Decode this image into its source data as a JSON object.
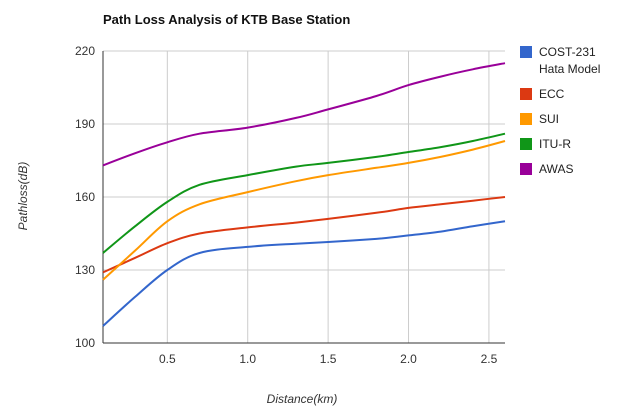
{
  "chart_data": {
    "type": "line",
    "title": "Path Loss Analysis of KTB Base Station",
    "xlabel": "Distance(km)",
    "ylabel": "Pathloss(dB)",
    "xlim": [
      0.1,
      2.6
    ],
    "ylim": [
      100,
      220
    ],
    "xticks": [
      0.5,
      1.0,
      1.5,
      2.0,
      2.5
    ],
    "xtick_labels": [
      "0.5",
      "1.0",
      "1.5",
      "2.0",
      "2.5"
    ],
    "yticks": [
      100,
      130,
      160,
      190,
      220
    ],
    "ytick_labels": [
      "100",
      "130",
      "160",
      "190",
      "220"
    ],
    "grid": true,
    "legend_position": "right",
    "x": [
      0.1,
      0.3,
      0.5,
      0.7,
      1.0,
      1.3,
      1.5,
      1.8,
      2.0,
      2.2,
      2.4,
      2.6
    ],
    "series": [
      {
        "name": "COST-231 Hata Model",
        "legend_lines": [
          "COST-231",
          "Hata Model"
        ],
        "color": "#3366cc",
        "values": [
          107,
          119,
          130,
          137,
          139.5,
          140.8,
          141.5,
          142.8,
          144.2,
          145.8,
          148,
          150
        ]
      },
      {
        "name": "ECC",
        "legend_lines": [
          "ECC"
        ],
        "color": "#dc3912",
        "values": [
          129,
          135,
          141,
          145,
          147.5,
          149.5,
          151,
          153.5,
          155.5,
          157,
          158.5,
          160
        ]
      },
      {
        "name": "SUI",
        "legend_lines": [
          "SUI"
        ],
        "color": "#ff9900",
        "values": [
          126,
          138,
          150,
          157,
          162,
          166.5,
          169,
          172,
          174,
          176.5,
          179.5,
          183
        ]
      },
      {
        "name": "ITU-R",
        "legend_lines": [
          "ITU-R"
        ],
        "color": "#109618",
        "values": [
          137,
          148,
          158,
          165,
          169,
          172.5,
          174,
          176.5,
          178.5,
          180.5,
          183,
          186
        ]
      },
      {
        "name": "AWAS",
        "legend_lines": [
          "AWAS"
        ],
        "color": "#990099",
        "values": [
          173,
          178,
          182.5,
          186,
          188.5,
          192.5,
          196,
          201.5,
          206,
          209.5,
          212.5,
          215
        ]
      }
    ]
  }
}
